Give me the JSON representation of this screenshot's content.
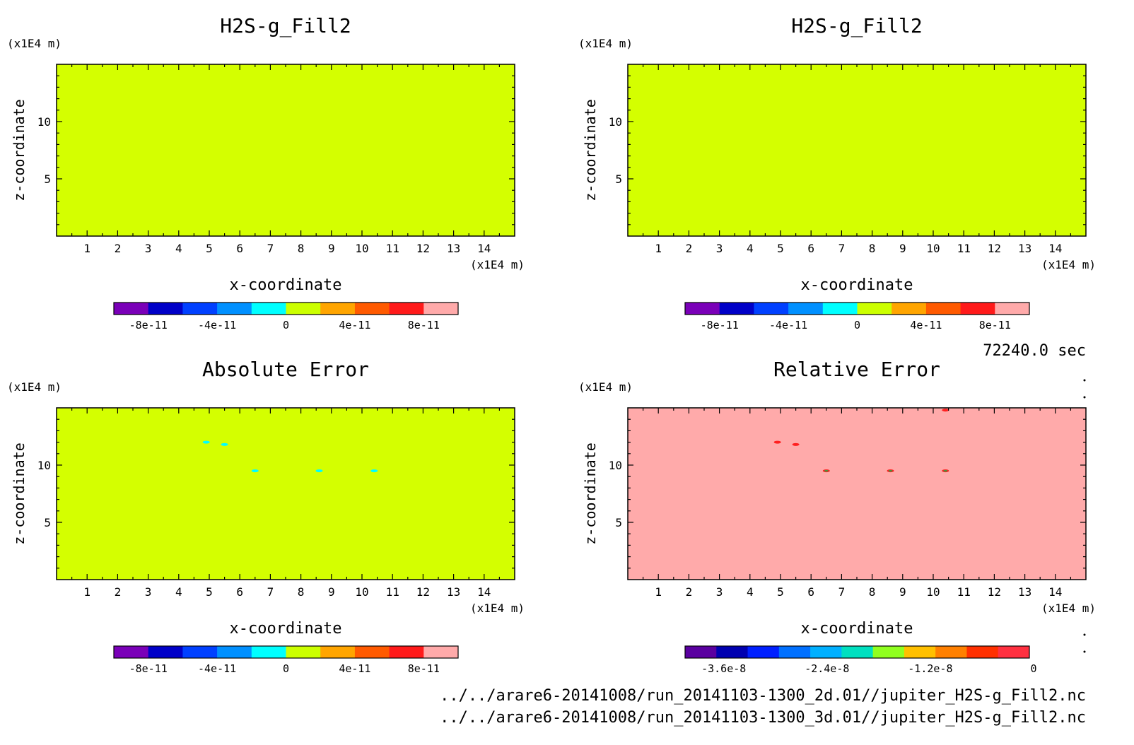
{
  "time_label": "72240.0 sec",
  "files": [
    "../../arare6-20141008/run_20141103-1300_2d.01//jupiter_H2S-g_Fill2.nc",
    "../../arare6-20141008/run_20141103-1300_3d.01//jupiter_H2S-g_Fill2.nc"
  ],
  "colors": {
    "fill_uniform": "#d4ff00",
    "fill_relative": "#ffaaaa",
    "speck_abs": "#00ffff",
    "speck_rel": "#ff2020",
    "speck_rel_green": "#22aa44"
  },
  "chart_data": [
    {
      "type": "heatmap",
      "title": "H2S-g_Fill2",
      "xlabel": "x-coordinate",
      "ylabel": "z-coordinate",
      "x_unit": "(x1E4 m)",
      "y_unit": "(x1E4 m)",
      "xlim": [
        0,
        15
      ],
      "ylim": [
        0,
        15
      ],
      "xticks": [
        1,
        2,
        3,
        4,
        5,
        6,
        7,
        8,
        9,
        10,
        11,
        12,
        13,
        14
      ],
      "yticks": [
        5,
        10
      ],
      "field": "uniform",
      "field_value": 0,
      "colorbar": {
        "levels": [
          "-8e-11",
          "-4e-11",
          "0",
          "4e-11",
          "8e-11"
        ],
        "colors": [
          "#7a00b8",
          "#0000c8",
          "#0040ff",
          "#0090ff",
          "#00ffff",
          "#ccff00",
          "#ffa500",
          "#ff5a00",
          "#ff1a1a",
          "#ffaaaa"
        ]
      },
      "specks": []
    },
    {
      "type": "heatmap",
      "title": "H2S-g_Fill2",
      "xlabel": "x-coordinate",
      "ylabel": "z-coordinate",
      "x_unit": "(x1E4 m)",
      "y_unit": "(x1E4 m)",
      "xlim": [
        0,
        15
      ],
      "ylim": [
        0,
        15
      ],
      "xticks": [
        1,
        2,
        3,
        4,
        5,
        6,
        7,
        8,
        9,
        10,
        11,
        12,
        13,
        14
      ],
      "yticks": [
        5,
        10
      ],
      "field": "uniform",
      "field_value": 0,
      "colorbar": {
        "levels": [
          "-8e-11",
          "-4e-11",
          "0",
          "4e-11",
          "8e-11"
        ],
        "colors": [
          "#7a00b8",
          "#0000c8",
          "#0040ff",
          "#0090ff",
          "#00ffff",
          "#ccff00",
          "#ffa500",
          "#ff5a00",
          "#ff1a1a",
          "#ffaaaa"
        ]
      },
      "specks": []
    },
    {
      "type": "heatmap",
      "title": "Absolute Error",
      "xlabel": "x-coordinate",
      "ylabel": "z-coordinate",
      "x_unit": "(x1E4 m)",
      "y_unit": "(x1E4 m)",
      "xlim": [
        0,
        15
      ],
      "ylim": [
        0,
        15
      ],
      "xticks": [
        1,
        2,
        3,
        4,
        5,
        6,
        7,
        8,
        9,
        10,
        11,
        12,
        13,
        14
      ],
      "yticks": [
        5,
        10
      ],
      "field": "uniform",
      "field_value": 0,
      "colorbar": {
        "levels": [
          "-8e-11",
          "-4e-11",
          "0",
          "4e-11",
          "8e-11"
        ],
        "colors": [
          "#7a00b8",
          "#0000c8",
          "#0040ff",
          "#0090ff",
          "#00ffff",
          "#ccff00",
          "#ffa500",
          "#ff5a00",
          "#ff1a1a",
          "#ffaaaa"
        ]
      },
      "specks": [
        {
          "x": 4.9,
          "z": 12.0
        },
        {
          "x": 5.5,
          "z": 11.8
        },
        {
          "x": 6.5,
          "z": 9.5
        },
        {
          "x": 8.6,
          "z": 9.5
        },
        {
          "x": 10.4,
          "z": 9.5
        }
      ]
    },
    {
      "type": "heatmap",
      "title": "Relative Error",
      "xlabel": "x-coordinate",
      "ylabel": "z-coordinate",
      "x_unit": "(x1E4 m)",
      "y_unit": "(x1E4 m)",
      "xlim": [
        0,
        15
      ],
      "ylim": [
        0,
        15
      ],
      "xticks": [
        1,
        2,
        3,
        4,
        5,
        6,
        7,
        8,
        9,
        10,
        11,
        12,
        13,
        14
      ],
      "yticks": [
        5,
        10
      ],
      "field": "uniform",
      "field_value": 0,
      "colorbar": {
        "levels": [
          "-3.6e-8",
          "-2.4e-8",
          "-1.2e-8",
          "0"
        ],
        "colors": [
          "#5a00a0",
          "#0000b0",
          "#0020ff",
          "#0070ff",
          "#00b0ff",
          "#00e0c0",
          "#90ff20",
          "#ffc000",
          "#ff8000",
          "#ff3000",
          "#ff3040"
        ]
      },
      "specks": [
        {
          "x": 10.4,
          "z": 14.8
        },
        {
          "x": 4.9,
          "z": 12.0
        },
        {
          "x": 5.5,
          "z": 11.8
        },
        {
          "x": 6.5,
          "z": 9.5
        },
        {
          "x": 8.6,
          "z": 9.5
        },
        {
          "x": 10.4,
          "z": 9.5
        }
      ]
    }
  ]
}
